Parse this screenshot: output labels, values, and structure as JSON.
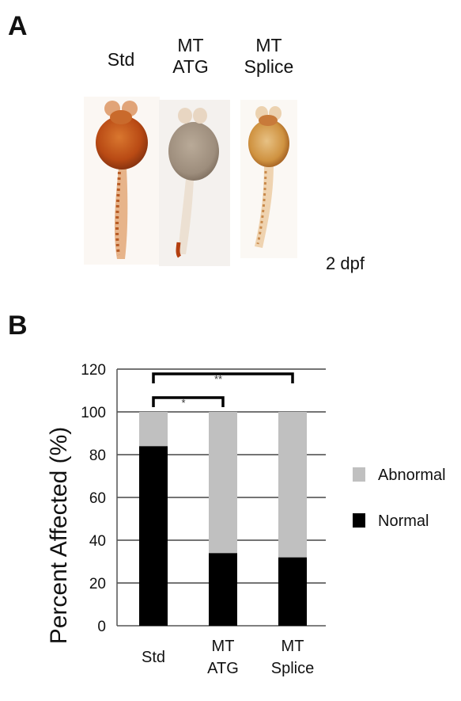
{
  "panel_a": {
    "letter": "A",
    "columns": [
      {
        "lines": [
          "Std"
        ]
      },
      {
        "lines": [
          "MT",
          "ATG"
        ]
      },
      {
        "lines": [
          "MT",
          "Splice"
        ]
      }
    ],
    "stage": "2 dpf"
  },
  "panel_b": {
    "letter": "B"
  },
  "chart_data": {
    "type": "bar",
    "stacked": true,
    "categories": [
      "Std",
      "MT ATG",
      "MT Splice"
    ],
    "category_lines": [
      [
        "Std"
      ],
      [
        "MT",
        "ATG"
      ],
      [
        "MT",
        "Splice"
      ]
    ],
    "series": [
      {
        "name": "Normal",
        "color": "#000000",
        "values": [
          84,
          34,
          32
        ]
      },
      {
        "name": "Abnormal",
        "color": "#c0c0c0",
        "values": [
          16,
          66,
          68
        ]
      }
    ],
    "title": "",
    "xlabel": "",
    "ylabel": "Percent Affected (%)",
    "ylim": [
      0,
      120
    ],
    "yticks": [
      0,
      20,
      40,
      60,
      80,
      100,
      120
    ],
    "grid": true,
    "legend": {
      "placement": "right",
      "order": [
        "Abnormal",
        "Normal"
      ]
    },
    "significance": [
      {
        "from": 0,
        "to": 1,
        "label": "*"
      },
      {
        "from": 0,
        "to": 2,
        "label": "**"
      }
    ]
  }
}
